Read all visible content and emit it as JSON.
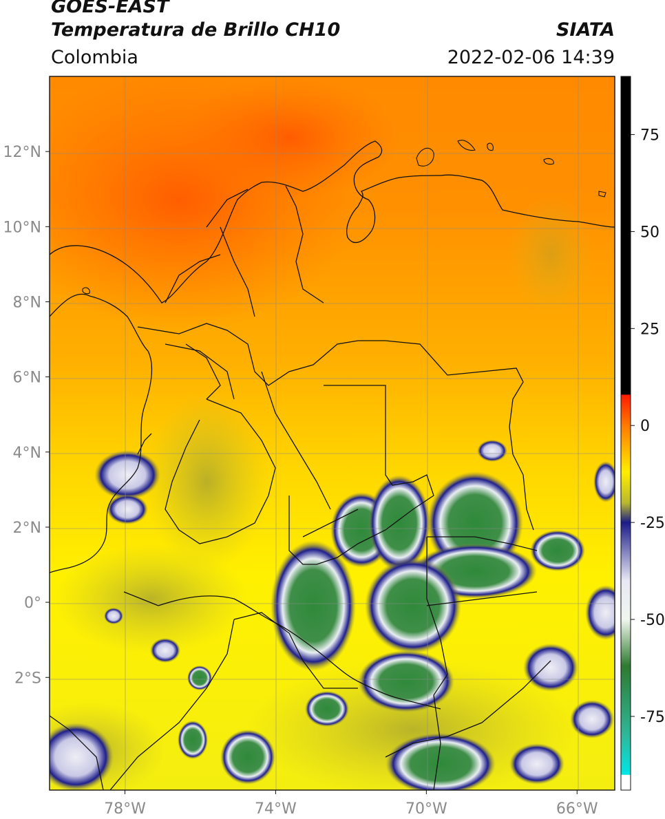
{
  "header": {
    "title_line1": "GOES-EAST",
    "title_line2": "Temperatura de Brillo CH10",
    "source": "SIATA",
    "region": "Colombia",
    "datetime": "2022-02-06 14:39"
  },
  "map": {
    "lat_ticks": [
      "12°N",
      "10°N",
      "8°N",
      "6°N",
      "4°N",
      "2°N",
      "0°",
      "2°S"
    ],
    "lon_ticks": [
      "78°W",
      "74°W",
      "70°W",
      "66°W"
    ],
    "extent": {
      "lon_min": -80,
      "lon_max": -65,
      "lat_min": -5,
      "lat_max": 14
    },
    "gridlines": true
  },
  "colorbar": {
    "ticks": [
      "75",
      "50",
      "25",
      "0",
      "-25",
      "-50",
      "-75"
    ],
    "stops": [
      {
        "value": 90,
        "color": "#000000"
      },
      {
        "value": 8,
        "color": "#000000"
      },
      {
        "value": 7.9,
        "color": "#ff1a00"
      },
      {
        "value": 0,
        "color": "#ff7a00"
      },
      {
        "value": -12,
        "color": "#ffee00"
      },
      {
        "value": -20,
        "color": "#b8b830"
      },
      {
        "value": -25,
        "color": "#1c1c88"
      },
      {
        "value": -40,
        "color": "#e8e8f4"
      },
      {
        "value": -50,
        "color": "#f0f6ee"
      },
      {
        "value": -62,
        "color": "#2e7a30"
      },
      {
        "value": -80,
        "color": "#2fb89a"
      },
      {
        "value": -90,
        "color": "#00e6e6"
      },
      {
        "value": -90.1,
        "color": "#ffffff"
      },
      {
        "value": -94,
        "color": "#ffffff"
      }
    ]
  }
}
